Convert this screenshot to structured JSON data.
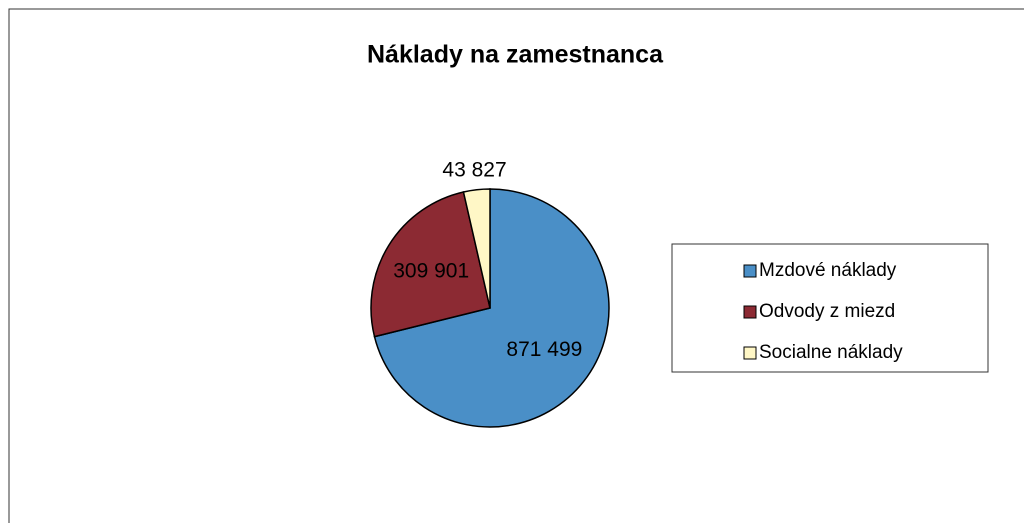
{
  "chart_data": {
    "type": "pie",
    "title": "Náklady na zamestnanca",
    "categories": [
      "Mzdové náklady",
      "Odvody z miezd",
      "Socialne náklady"
    ],
    "values": [
      871499,
      309901,
      43827
    ],
    "value_labels": [
      "871 499",
      "309 901",
      "43 827"
    ],
    "colors": [
      "#4a8fc7",
      "#8c2a33",
      "#fff7c6"
    ],
    "legend": "right"
  }
}
